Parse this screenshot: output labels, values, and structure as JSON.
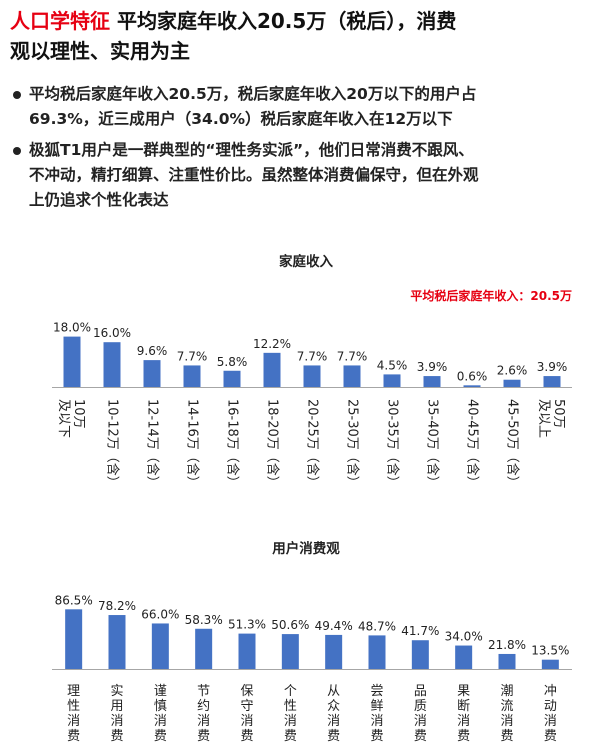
{
  "header": {
    "title_red": "人口学特征",
    "title_rest": "平均家庭年收入20.5万（税后），消费",
    "title_line2": "观以理性、实用为主"
  },
  "bullets": [
    {
      "line1": "平均税后家庭年收入20.5万，税后家庭年收入20万以下的用户占",
      "line2": "69.3%，近三成用户（34.0%）税后家庭年收入在12万以下"
    },
    {
      "line1": "极狐T1用户是一群典型的“理性务实派”，他们日常消费不跟风、",
      "line2": "不冲动，精打细算、注重性价比。虽然整体消费偏保守，但在外观",
      "line3": "上仍追求个性化表达"
    }
  ],
  "colors": {
    "accent_red": "#e60012",
    "bar": "#4472c4",
    "axis": "#a6a6a6"
  },
  "chart_data": [
    {
      "type": "bar",
      "title": "家庭收入",
      "annotation": "平均税后家庭年收入：20.5万",
      "categories": [
        "10万及以下",
        "10-12万（含）",
        "12-14万（含）",
        "14-16万（含）",
        "16-18万（含）",
        "18-20万（含）",
        "20-25万（含）",
        "25-30万（含）",
        "30-35万（含）",
        "35-40万（含）",
        "40-45万（含）",
        "45-50万（含）",
        "50万及以上"
      ],
      "values": [
        18.0,
        16.0,
        9.6,
        7.7,
        5.8,
        12.2,
        7.7,
        7.7,
        4.5,
        3.9,
        0.6,
        2.6,
        3.9
      ],
      "labels": [
        "18.0%",
        "16.0%",
        "9.6%",
        "7.7%",
        "5.8%",
        "12.2%",
        "7.7%",
        "7.7%",
        "4.5%",
        "3.9%",
        "0.6%",
        "2.6%",
        "3.9%"
      ],
      "xlabel": "",
      "ylabel": "",
      "grid": false
    },
    {
      "type": "bar",
      "title": "用户消费观",
      "categories": [
        "理性消费",
        "实用消费",
        "谨慎消费",
        "节约消费",
        "保守消费",
        "个性消费",
        "从众消费",
        "尝鲜消费",
        "品质消费",
        "果断消费",
        "潮流消费",
        "冲动消费"
      ],
      "values": [
        86.5,
        78.2,
        66.0,
        58.3,
        51.3,
        50.6,
        49.4,
        48.7,
        41.7,
        34.0,
        21.8,
        13.5
      ],
      "labels": [
        "86.5%",
        "78.2%",
        "66.0%",
        "58.3%",
        "51.3%",
        "50.6%",
        "49.4%",
        "48.7%",
        "41.7%",
        "34.0%",
        "21.8%",
        "13.5%"
      ],
      "xlabel": "",
      "ylabel": "",
      "grid": false
    }
  ]
}
